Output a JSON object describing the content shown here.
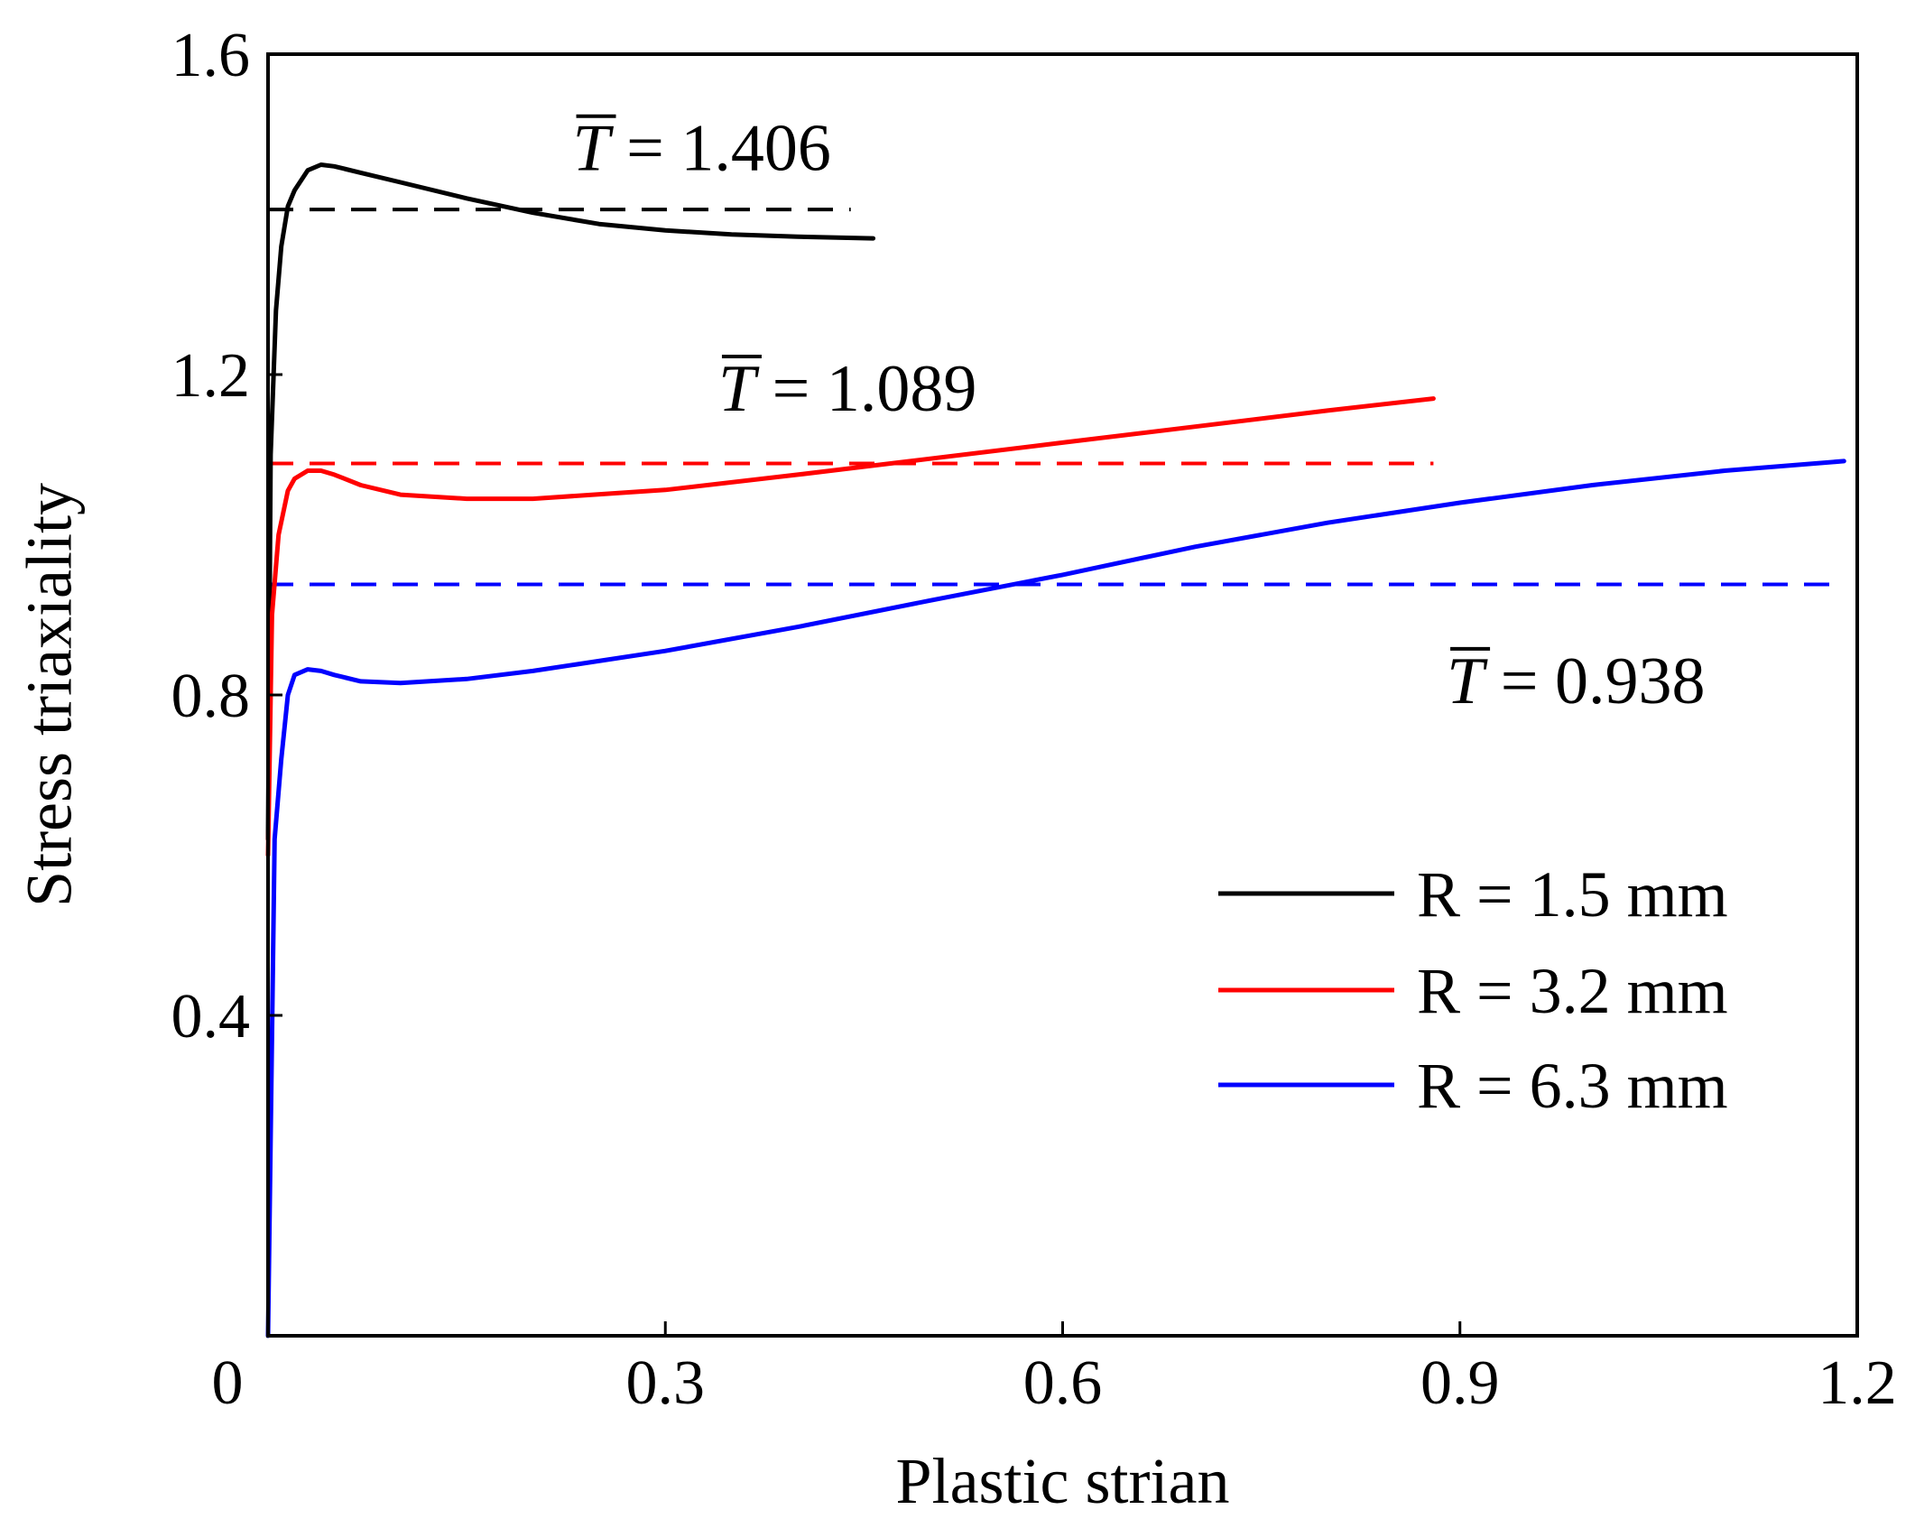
{
  "chart_data": {
    "type": "line",
    "title": "",
    "xlabel": "Plastic strian",
    "ylabel": "Stress triaxiality",
    "xlim": [
      0,
      1.2
    ],
    "ylim": [
      0,
      1.6
    ],
    "xticks": [
      0.3,
      0.6,
      0.9,
      1.2
    ],
    "xtick_labels": [
      "0.3",
      "0.6",
      "0.9",
      "1.2"
    ],
    "yticks": [
      0,
      0.4,
      0.8,
      1.2,
      1.6
    ],
    "ytick_labels": [
      "0",
      "0.4",
      "0.8",
      "1.2",
      "1.6"
    ],
    "grid": false,
    "legend_position": "bottom-right",
    "series": [
      {
        "name": "R = 1.5 mm",
        "color": "#000000",
        "x": [
          0,
          0.002,
          0.006,
          0.01,
          0.015,
          0.02,
          0.03,
          0.04,
          0.05,
          0.07,
          0.1,
          0.15,
          0.2,
          0.25,
          0.3,
          0.35,
          0.4,
          0.457
        ],
        "y": [
          0.62,
          1.1,
          1.28,
          1.36,
          1.41,
          1.43,
          1.455,
          1.462,
          1.46,
          1.452,
          1.44,
          1.42,
          1.402,
          1.388,
          1.38,
          1.375,
          1.372,
          1.37
        ]
      },
      {
        "name": "R = 3.2 mm",
        "color": "#ff0000",
        "x": [
          0,
          0.003,
          0.008,
          0.015,
          0.02,
          0.03,
          0.04,
          0.05,
          0.07,
          0.1,
          0.15,
          0.2,
          0.3,
          0.4,
          0.5,
          0.6,
          0.7,
          0.8,
          0.88
        ],
        "y": [
          0.6,
          0.9,
          1.0,
          1.055,
          1.07,
          1.08,
          1.08,
          1.075,
          1.062,
          1.05,
          1.045,
          1.045,
          1.056,
          1.075,
          1.095,
          1.115,
          1.135,
          1.155,
          1.17
        ]
      },
      {
        "name": "R = 6.3 mm",
        "color": "#0000ff",
        "x": [
          0,
          0.005,
          0.01,
          0.015,
          0.02,
          0.03,
          0.04,
          0.05,
          0.07,
          0.1,
          0.15,
          0.2,
          0.3,
          0.4,
          0.5,
          0.6,
          0.7,
          0.8,
          0.9,
          1.0,
          1.1,
          1.19
        ],
        "y": [
          0.0,
          0.62,
          0.72,
          0.8,
          0.825,
          0.832,
          0.83,
          0.825,
          0.817,
          0.815,
          0.82,
          0.83,
          0.855,
          0.885,
          0.918,
          0.95,
          0.985,
          1.015,
          1.04,
          1.062,
          1.08,
          1.092
        ]
      }
    ],
    "reference_lines": [
      {
        "label_symbol": "T",
        "label_text": " = 1.406",
        "value": 1.406,
        "x_range": [
          0,
          0.44
        ],
        "color": "#000000"
      },
      {
        "label_symbol": "T",
        "label_text": " = 1.089",
        "value": 1.089,
        "x_range": [
          0,
          0.88
        ],
        "color": "#ff0000"
      },
      {
        "label_symbol": "T",
        "label_text": " = 0.938",
        "value": 0.938,
        "x_range": [
          0,
          1.19
        ],
        "color": "#0000ff"
      }
    ]
  }
}
